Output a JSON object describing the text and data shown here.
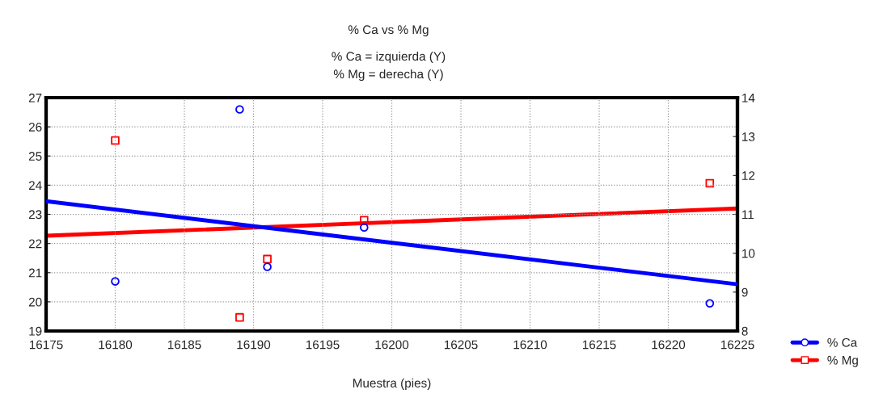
{
  "chart_data": {
    "type": "scatter",
    "title": "% Ca vs % Mg",
    "subtitle": "% Ca = izquierda (Y)\n% Mg = derecha (Y)",
    "xlabel": "Muestra (pies)",
    "xlim": [
      16175,
      16225
    ],
    "xticks": [
      16175,
      16180,
      16185,
      16190,
      16195,
      16200,
      16205,
      16210,
      16215,
      16220,
      16225
    ],
    "ylim": [
      19,
      27
    ],
    "yticks": [
      19,
      20,
      21,
      22,
      23,
      24,
      25,
      26,
      27
    ],
    "y2lim": [
      8,
      14
    ],
    "y2ticks": [
      8,
      9,
      10,
      11,
      12,
      13,
      14
    ],
    "grid": true,
    "legend": "bottom right",
    "series": [
      {
        "name": "% Ca",
        "color": "#0000ff",
        "marker": "circle",
        "x": [
          16180,
          16189,
          16191,
          16198,
          16223
        ],
        "values": [
          20.7,
          26.6,
          21.2,
          22.55,
          19.95
        ]
      },
      {
        "name": "% Mg",
        "color": "#ff0000",
        "marker": "square",
        "axis": "y2",
        "x": [
          16180,
          16189,
          16191,
          16198,
          16223
        ],
        "values": [
          12.9,
          8.35,
          9.85,
          10.85,
          11.8
        ]
      },
      {
        "color": "#0000ff",
        "type": "line",
        "marker": "none",
        "x": [
          16175,
          16225
        ],
        "values": [
          23.45,
          20.6
        ]
      },
      {
        "color": "#ff0000",
        "type": "line",
        "marker": "none",
        "axis": "y2",
        "x": [
          16175,
          16225
        ],
        "values": [
          10.45,
          11.15
        ]
      }
    ]
  }
}
